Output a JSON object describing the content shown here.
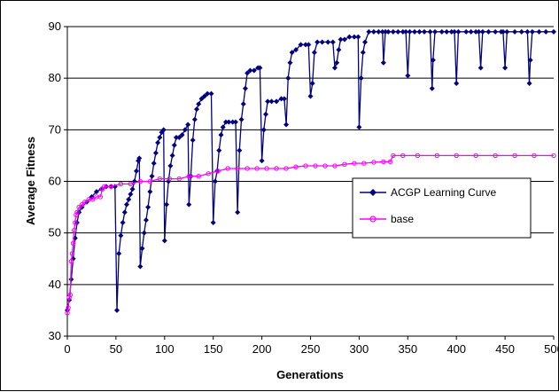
{
  "chart_data": {
    "type": "line",
    "xlabel": "Generations",
    "ylabel": "Average Fitness",
    "xlim": [
      0,
      500
    ],
    "ylim": [
      30,
      90
    ],
    "x_ticks": [
      "0",
      "50",
      "100",
      "150",
      "200",
      "250",
      "300",
      "350",
      "400",
      "450",
      "500"
    ],
    "y_ticks": [
      "30",
      "40",
      "50",
      "60",
      "70",
      "80",
      "90"
    ],
    "grid": "horizontal",
    "legend_position": "right",
    "series": [
      {
        "name": "ACGP Learning Curve",
        "color": "#000080",
        "marker": "diamond",
        "points": [
          [
            0,
            35
          ],
          [
            2,
            37
          ],
          [
            4,
            41
          ],
          [
            6,
            45
          ],
          [
            8,
            49
          ],
          [
            10,
            52
          ],
          [
            12,
            54
          ],
          [
            15,
            55
          ],
          [
            20,
            56
          ],
          [
            25,
            57
          ],
          [
            30,
            58
          ],
          [
            35,
            58.5
          ],
          [
            40,
            59
          ],
          [
            45,
            59
          ],
          [
            49,
            59
          ],
          [
            51,
            35
          ],
          [
            53,
            46
          ],
          [
            55,
            49.5
          ],
          [
            57,
            52
          ],
          [
            59,
            54
          ],
          [
            61,
            55.5
          ],
          [
            63,
            56.5
          ],
          [
            65,
            57.5
          ],
          [
            67,
            58.5
          ],
          [
            69,
            60
          ],
          [
            71,
            62
          ],
          [
            73,
            64
          ],
          [
            74,
            64.5
          ],
          [
            75,
            43.5
          ],
          [
            77,
            47
          ],
          [
            79,
            50
          ],
          [
            81,
            52.5
          ],
          [
            83,
            55
          ],
          [
            85,
            58
          ],
          [
            87,
            61
          ],
          [
            89,
            63.5
          ],
          [
            91,
            65.5
          ],
          [
            93,
            67.5
          ],
          [
            95,
            68.5
          ],
          [
            97,
            69.5
          ],
          [
            99,
            70
          ],
          [
            100,
            48.5
          ],
          [
            102,
            55.5
          ],
          [
            104,
            60
          ],
          [
            106,
            63
          ],
          [
            108,
            65
          ],
          [
            110,
            67
          ],
          [
            112,
            68.5
          ],
          [
            115,
            68.5
          ],
          [
            118,
            69
          ],
          [
            121,
            70
          ],
          [
            124,
            71
          ],
          [
            125,
            55.5
          ],
          [
            127,
            61
          ],
          [
            129,
            68
          ],
          [
            131,
            72
          ],
          [
            133,
            74
          ],
          [
            135,
            75
          ],
          [
            138,
            76
          ],
          [
            141,
            76.5
          ],
          [
            144,
            77
          ],
          [
            148,
            77
          ],
          [
            150,
            52
          ],
          [
            152,
            60
          ],
          [
            154,
            62
          ],
          [
            156,
            66
          ],
          [
            158,
            69
          ],
          [
            160,
            70.5
          ],
          [
            163,
            71.5
          ],
          [
            166,
            71.5
          ],
          [
            170,
            71.5
          ],
          [
            173,
            71.5
          ],
          [
            175,
            54
          ],
          [
            177,
            66
          ],
          [
            179,
            72
          ],
          [
            181,
            75
          ],
          [
            183,
            78
          ],
          [
            185,
            81
          ],
          [
            188,
            81.5
          ],
          [
            192,
            81.5
          ],
          [
            196,
            82
          ],
          [
            198,
            82
          ],
          [
            200,
            64
          ],
          [
            202,
            70
          ],
          [
            204,
            73
          ],
          [
            206,
            75.5
          ],
          [
            210,
            75.5
          ],
          [
            215,
            75.5
          ],
          [
            220,
            76
          ],
          [
            223,
            76
          ],
          [
            225,
            71
          ],
          [
            227,
            80
          ],
          [
            229,
            83
          ],
          [
            231,
            85
          ],
          [
            235,
            85.5
          ],
          [
            240,
            86.5
          ],
          [
            245,
            86.5
          ],
          [
            248,
            86.5
          ],
          [
            250,
            76.5
          ],
          [
            252,
            79
          ],
          [
            254,
            85
          ],
          [
            257,
            87
          ],
          [
            262,
            87
          ],
          [
            268,
            87
          ],
          [
            273,
            87
          ],
          [
            275,
            82
          ],
          [
            277,
            83
          ],
          [
            279,
            85.5
          ],
          [
            281,
            87.5
          ],
          [
            285,
            87.5
          ],
          [
            290,
            88
          ],
          [
            295,
            88
          ],
          [
            299,
            88
          ],
          [
            300,
            70.5
          ],
          [
            302,
            80
          ],
          [
            304,
            85
          ],
          [
            306,
            87
          ],
          [
            310,
            89
          ],
          [
            315,
            89
          ],
          [
            320,
            89
          ],
          [
            324,
            89
          ],
          [
            325,
            83
          ],
          [
            327,
            89
          ],
          [
            330,
            89
          ],
          [
            335,
            89
          ],
          [
            340,
            89
          ],
          [
            345,
            89
          ],
          [
            348,
            89
          ],
          [
            350,
            80.5
          ],
          [
            352,
            89
          ],
          [
            357,
            89
          ],
          [
            362,
            89
          ],
          [
            367,
            89
          ],
          [
            373,
            89
          ],
          [
            375,
            78
          ],
          [
            376,
            83.5
          ],
          [
            378,
            89
          ],
          [
            385,
            89
          ],
          [
            390,
            89
          ],
          [
            395,
            89
          ],
          [
            398,
            89
          ],
          [
            400,
            79
          ],
          [
            402,
            89
          ],
          [
            410,
            89
          ],
          [
            415,
            89
          ],
          [
            420,
            89
          ],
          [
            423,
            89
          ],
          [
            425,
            82
          ],
          [
            427,
            89
          ],
          [
            433,
            89
          ],
          [
            440,
            89
          ],
          [
            446,
            89
          ],
          [
            448,
            89
          ],
          [
            450,
            82
          ],
          [
            452,
            89
          ],
          [
            460,
            89
          ],
          [
            467,
            89
          ],
          [
            473,
            89
          ],
          [
            475,
            79
          ],
          [
            476,
            83.5
          ],
          [
            478,
            89
          ],
          [
            485,
            89
          ],
          [
            492,
            89
          ],
          [
            500,
            89
          ]
        ]
      },
      {
        "name": "base",
        "color": "#ff00ff",
        "marker": "circle",
        "points": [
          [
            0,
            34.5
          ],
          [
            1,
            35.5
          ],
          [
            2,
            37.5
          ],
          [
            3,
            38
          ],
          [
            4,
            44.5
          ],
          [
            5,
            46
          ],
          [
            6,
            48
          ],
          [
            7,
            50.5
          ],
          [
            8,
            52
          ],
          [
            9,
            53.5
          ],
          [
            10,
            54
          ],
          [
            12,
            55
          ],
          [
            15,
            55.5
          ],
          [
            18,
            56
          ],
          [
            22,
            56.5
          ],
          [
            26,
            56.5
          ],
          [
            30,
            57
          ],
          [
            34,
            57
          ],
          [
            36,
            58.5
          ],
          [
            38,
            59
          ],
          [
            45,
            59
          ],
          [
            55,
            59.5
          ],
          [
            65,
            59.5
          ],
          [
            75,
            60
          ],
          [
            85,
            60
          ],
          [
            95,
            60.5
          ],
          [
            105,
            60.5
          ],
          [
            115,
            60.5
          ],
          [
            125,
            61
          ],
          [
            135,
            61
          ],
          [
            145,
            61.5
          ],
          [
            155,
            62
          ],
          [
            165,
            62.5
          ],
          [
            175,
            62.5
          ],
          [
            185,
            62.5
          ],
          [
            195,
            62.5
          ],
          [
            205,
            62.5
          ],
          [
            215,
            62.5
          ],
          [
            225,
            62.5
          ],
          [
            235,
            62.8
          ],
          [
            245,
            63
          ],
          [
            255,
            63
          ],
          [
            265,
            63
          ],
          [
            275,
            63
          ],
          [
            285,
            63.3
          ],
          [
            295,
            63.5
          ],
          [
            305,
            63.5
          ],
          [
            315,
            63.7
          ],
          [
            325,
            63.8
          ],
          [
            332,
            63.8
          ],
          [
            335,
            65
          ],
          [
            345,
            65
          ],
          [
            360,
            65
          ],
          [
            380,
            65
          ],
          [
            400,
            65
          ],
          [
            420,
            65
          ],
          [
            440,
            65
          ],
          [
            460,
            65
          ],
          [
            480,
            65
          ],
          [
            500,
            65
          ]
        ]
      }
    ]
  }
}
